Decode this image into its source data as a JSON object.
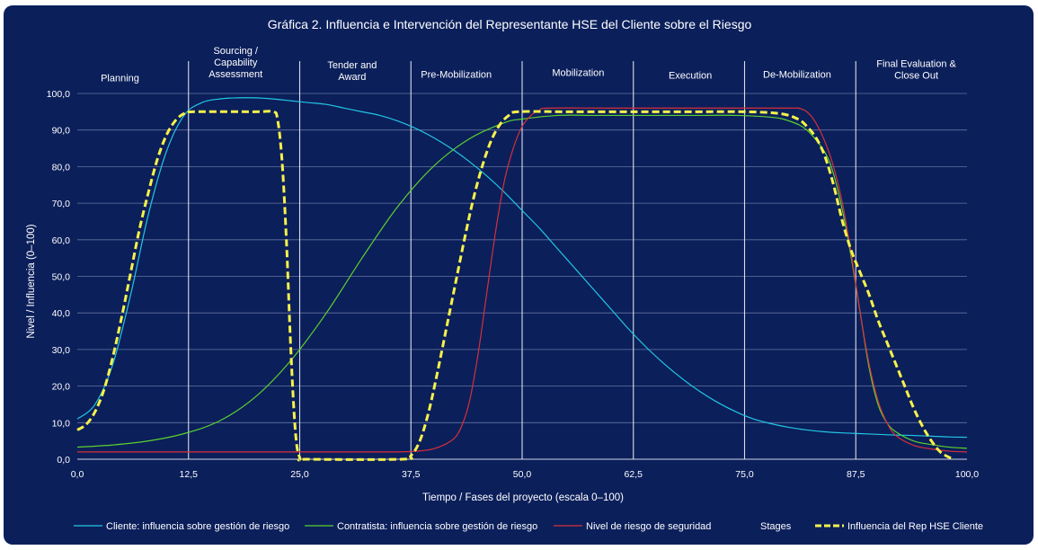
{
  "chart_data": {
    "type": "line",
    "title": "Gráfica 2. Influencia e Intervención del Representante HSE del Cliente sobre el Riesgo",
    "xlabel": "Tiempo / Fases del proyecto (escala 0–100)",
    "ylabel": "Nivel / Influencia (0–100)",
    "xlim": [
      0,
      100
    ],
    "ylim": [
      0,
      100
    ],
    "grid": true,
    "legend_position": "bottom",
    "x_ticks": [
      0,
      12.5,
      25,
      37.5,
      50,
      62.5,
      75,
      87.5,
      100
    ],
    "x_tick_labels": [
      "0,0",
      "12,5",
      "25,0",
      "37,5",
      "50,0",
      "62,5",
      "75,0",
      "87,5",
      "100,0"
    ],
    "y_ticks": [
      0,
      10,
      20,
      30,
      40,
      50,
      60,
      70,
      80,
      90,
      100
    ],
    "y_tick_labels": [
      "0,0",
      "10,0",
      "20,0",
      "30,0",
      "40,0",
      "50,0",
      "60,0",
      "70,0",
      "80,0",
      "90,0",
      "100,0"
    ],
    "stage_boundaries": [
      12.5,
      25,
      37.5,
      50,
      62.5,
      75,
      87.5
    ],
    "stages": [
      {
        "label": "Planning",
        "x": 4.8,
        "y": 104.3
      },
      {
        "label": "Sourcing /\nCapability\nAssessment",
        "x": 17.8,
        "y": 108.6
      },
      {
        "label": "Tender and\nAward",
        "x": 30.9,
        "y": 106.3
      },
      {
        "label": "Pre-Mobilization",
        "x": 42.6,
        "y": 105.3
      },
      {
        "label": "Mobilization",
        "x": 56.3,
        "y": 105.8
      },
      {
        "label": "Execution",
        "x": 68.9,
        "y": 105.0
      },
      {
        "label": "De-Mobilization",
        "x": 80.9,
        "y": 105.3
      },
      {
        "label": "Final Evaluation &\nClose Out",
        "x": 94.3,
        "y": 106.6
      }
    ],
    "series": [
      {
        "name": "Cliente: influencia sobre gestión de riesgo",
        "color": "#22c6e2",
        "style": "solid",
        "points": [
          [
            0,
            11
          ],
          [
            2,
            15
          ],
          [
            4,
            26
          ],
          [
            6,
            45
          ],
          [
            8,
            67
          ],
          [
            10,
            84
          ],
          [
            12,
            94
          ],
          [
            14,
            97.5
          ],
          [
            16,
            98.5
          ],
          [
            18,
            98.8
          ],
          [
            20,
            98.8
          ],
          [
            22,
            98.5
          ],
          [
            24,
            98
          ],
          [
            26,
            97.5
          ],
          [
            28,
            97
          ],
          [
            30,
            96
          ],
          [
            32,
            95
          ],
          [
            34,
            94
          ],
          [
            36,
            92.5
          ],
          [
            38,
            90.5
          ],
          [
            40,
            88
          ],
          [
            42,
            85
          ],
          [
            44,
            81.5
          ],
          [
            46,
            77.5
          ],
          [
            48,
            73
          ],
          [
            50,
            68
          ],
          [
            52,
            63
          ],
          [
            54,
            57.5
          ],
          [
            56,
            52
          ],
          [
            58,
            46.5
          ],
          [
            60,
            41
          ],
          [
            62,
            35.5
          ],
          [
            64,
            30.5
          ],
          [
            66,
            26
          ],
          [
            68,
            22
          ],
          [
            70,
            18.5
          ],
          [
            72,
            15.5
          ],
          [
            74,
            13
          ],
          [
            76,
            11
          ],
          [
            78,
            9.7
          ],
          [
            80,
            8.7
          ],
          [
            82,
            8
          ],
          [
            84,
            7.5
          ],
          [
            86,
            7.2
          ],
          [
            88,
            7
          ],
          [
            90,
            6.8
          ],
          [
            92,
            6.6
          ],
          [
            94,
            6.5
          ],
          [
            96,
            6.3
          ],
          [
            98,
            6.1
          ],
          [
            100,
            6
          ]
        ]
      },
      {
        "name": "Contratista: influencia sobre gestión de riesgo",
        "color": "#5cd12f",
        "style": "solid",
        "points": [
          [
            0,
            3.3
          ],
          [
            4,
            3.9
          ],
          [
            8,
            5
          ],
          [
            12,
            7
          ],
          [
            16,
            10.5
          ],
          [
            20,
            17
          ],
          [
            24,
            27
          ],
          [
            28,
            40
          ],
          [
            32,
            55
          ],
          [
            36,
            69
          ],
          [
            40,
            80
          ],
          [
            44,
            87.5
          ],
          [
            48,
            92
          ],
          [
            50,
            93
          ],
          [
            54,
            94
          ],
          [
            58,
            94
          ],
          [
            62,
            94
          ],
          [
            66,
            94
          ],
          [
            70,
            94
          ],
          [
            74,
            94
          ],
          [
            78,
            93.5
          ],
          [
            80,
            92.5
          ],
          [
            82,
            90
          ],
          [
            84,
            84
          ],
          [
            85,
            78
          ],
          [
            86,
            68
          ],
          [
            87,
            55
          ],
          [
            88,
            40
          ],
          [
            89,
            25
          ],
          [
            90,
            15
          ],
          [
            91,
            10
          ],
          [
            92,
            7.5
          ],
          [
            94,
            5
          ],
          [
            96,
            4
          ],
          [
            98,
            3.3
          ],
          [
            100,
            3
          ]
        ]
      },
      {
        "name": "Nivel de riesgo de seguridad",
        "color": "#d6303a",
        "style": "solid",
        "points": [
          [
            0,
            2
          ],
          [
            10,
            2
          ],
          [
            20,
            2
          ],
          [
            30,
            2
          ],
          [
            36,
            2
          ],
          [
            38,
            2.2
          ],
          [
            40,
            2.8
          ],
          [
            42,
            5
          ],
          [
            43,
            8
          ],
          [
            44,
            15
          ],
          [
            45,
            28
          ],
          [
            46,
            45
          ],
          [
            47,
            62
          ],
          [
            48,
            76
          ],
          [
            49,
            85
          ],
          [
            50,
            91
          ],
          [
            51,
            94
          ],
          [
            52,
            95.5
          ],
          [
            53,
            96
          ],
          [
            60,
            96
          ],
          [
            70,
            96
          ],
          [
            80,
            96
          ],
          [
            81,
            96
          ],
          [
            82,
            95
          ],
          [
            83,
            92
          ],
          [
            84,
            87
          ],
          [
            85,
            80
          ],
          [
            86,
            70
          ],
          [
            87,
            56
          ],
          [
            88,
            40
          ],
          [
            89,
            26
          ],
          [
            90,
            16
          ],
          [
            91,
            10
          ],
          [
            92,
            6.5
          ],
          [
            94,
            3.8
          ],
          [
            96,
            2.8
          ],
          [
            98,
            2.2
          ],
          [
            100,
            2
          ]
        ]
      },
      {
        "name": "Stages",
        "color": "#ffffff",
        "style": "vertical-lines",
        "points": []
      },
      {
        "name": "Influencia del Rep HSE Cliente",
        "color": "#f6f24b",
        "style": "dashed",
        "points": [
          [
            0,
            8
          ],
          [
            1,
            9.5
          ],
          [
            2,
            13
          ],
          [
            3,
            19
          ],
          [
            4,
            28
          ],
          [
            5,
            39
          ],
          [
            6,
            51
          ],
          [
            7,
            63
          ],
          [
            8,
            73
          ],
          [
            9,
            82
          ],
          [
            10,
            88.5
          ],
          [
            11,
            92.5
          ],
          [
            12,
            94.5
          ],
          [
            13,
            95
          ],
          [
            20,
            95
          ],
          [
            22,
            95
          ],
          [
            22.5,
            93
          ],
          [
            23,
            82
          ],
          [
            23.5,
            60
          ],
          [
            24,
            30
          ],
          [
            24.5,
            8
          ],
          [
            25,
            0.5
          ],
          [
            26,
            0
          ],
          [
            36.5,
            0
          ],
          [
            37.5,
            1
          ],
          [
            38.5,
            5
          ],
          [
            39.5,
            13
          ],
          [
            40.5,
            24
          ],
          [
            41.5,
            36
          ],
          [
            42.5,
            48
          ],
          [
            43.5,
            60
          ],
          [
            44.5,
            71
          ],
          [
            45.5,
            80
          ],
          [
            46.5,
            87
          ],
          [
            47.5,
            91.5
          ],
          [
            48.5,
            94
          ],
          [
            49.5,
            95
          ],
          [
            55,
            95
          ],
          [
            60,
            95
          ],
          [
            70,
            95
          ],
          [
            75,
            95
          ],
          [
            79,
            94.5
          ],
          [
            81,
            93
          ],
          [
            82,
            91
          ],
          [
            83,
            88
          ],
          [
            84,
            83
          ],
          [
            85,
            75
          ],
          [
            86,
            65
          ],
          [
            87,
            57
          ],
          [
            88,
            51
          ],
          [
            89,
            45
          ],
          [
            90,
            38
          ],
          [
            91,
            32
          ],
          [
            92,
            26
          ],
          [
            93,
            20
          ],
          [
            94,
            14
          ],
          [
            95,
            9
          ],
          [
            96,
            5
          ],
          [
            97,
            2
          ],
          [
            98,
            0.5
          ],
          [
            98.5,
            0
          ]
        ]
      }
    ]
  }
}
